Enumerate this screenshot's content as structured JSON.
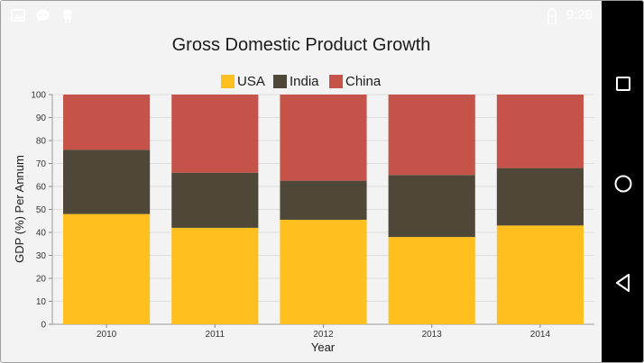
{
  "status_bar": {
    "time": "9:28",
    "left_icons": [
      "image-icon",
      "chat-bubble-icon",
      "android-icon"
    ],
    "right_icons": [
      "battery-charging-icon"
    ]
  },
  "navigation_bar": {
    "buttons": [
      "recent-apps-button",
      "home-button",
      "back-button"
    ]
  },
  "colors": {
    "usa": "#FFBF1F",
    "india": "#4F4737",
    "china": "#C5534A",
    "background": "#F3F3F3",
    "grid": "#DEDEDE"
  },
  "chart_data": {
    "type": "bar",
    "stacked": "100%",
    "title": "Gross Domestic Product Growth",
    "xlabel": "Year",
    "ylabel": "GDP (%) Per Annum",
    "categories": [
      "2010",
      "2011",
      "2012",
      "2013",
      "2014"
    ],
    "ylim": [
      0,
      100
    ],
    "yticks": [
      0,
      10,
      20,
      30,
      40,
      50,
      60,
      70,
      80,
      90,
      100
    ],
    "grid": true,
    "legend_position": "top-center",
    "series": [
      {
        "name": "USA",
        "values": [
          48,
          42,
          45.5,
          38,
          43
        ]
      },
      {
        "name": "India",
        "values": [
          28,
          24,
          17,
          27,
          25
        ]
      },
      {
        "name": "China",
        "values": [
          24,
          34,
          37.5,
          35,
          32
        ]
      }
    ]
  }
}
